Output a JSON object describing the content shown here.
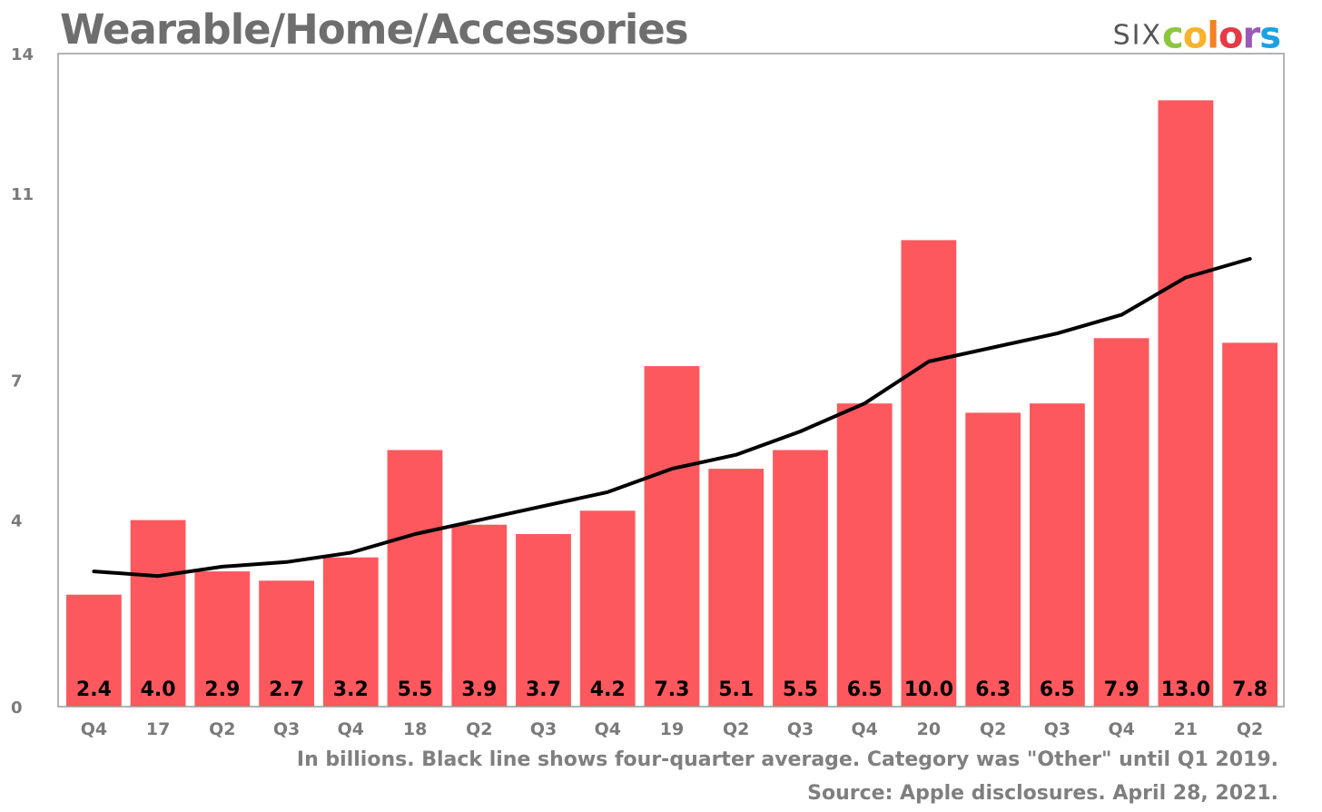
{
  "header": {
    "title": "Wearable/Home/Accessories"
  },
  "logo": {
    "six": "SIX",
    "colors_letters": [
      {
        "char": "c",
        "color": "#8cc63f"
      },
      {
        "char": "o",
        "color": "#f7b32b"
      },
      {
        "char": "l",
        "color": "#f58220"
      },
      {
        "char": "o",
        "color": "#e63946"
      },
      {
        "char": "r",
        "color": "#9b59b6"
      },
      {
        "char": "s",
        "color": "#1ba1e2"
      }
    ]
  },
  "footnotes": {
    "line1": "In billions. Black line shows four-quarter average. Category was \"Other\" until Q1 2019.",
    "line2": "Source: Apple disclosures. April 28, 2021."
  },
  "colors": {
    "bar": "#fd585e",
    "line": "#000000",
    "axis_text": "#7a7a7a",
    "frame": "#9a9a9a"
  },
  "chart_data": {
    "type": "bar",
    "title": "Wearable/Home/Accessories",
    "xlabel": "",
    "ylabel": "",
    "ylim": [
      0,
      14
    ],
    "yticks": [
      0,
      4,
      7,
      11,
      14
    ],
    "grid": false,
    "categories": [
      "Q4",
      "17",
      "Q2",
      "Q3",
      "Q4",
      "18",
      "Q2",
      "Q3",
      "Q4",
      "19",
      "Q2",
      "Q3",
      "Q4",
      "20",
      "Q2",
      "Q3",
      "Q4",
      "21",
      "Q2"
    ],
    "series": [
      {
        "type": "bar",
        "values": [
          2.4,
          4.0,
          2.9,
          2.7,
          3.2,
          5.5,
          3.9,
          3.7,
          4.2,
          7.3,
          5.1,
          5.5,
          6.5,
          10.0,
          6.3,
          6.5,
          7.9,
          13.0,
          7.8
        ],
        "labels": [
          "2.4",
          "4.0",
          "2.9",
          "2.7",
          "3.2",
          "5.5",
          "3.9",
          "3.7",
          "4.2",
          "7.3",
          "5.1",
          "5.5",
          "6.5",
          "10.0",
          "6.3",
          "6.5",
          "7.9",
          "13.0",
          "7.8"
        ]
      },
      {
        "type": "line",
        "values": [
          2.9,
          2.8,
          3.0,
          3.1,
          3.3,
          3.7,
          4.0,
          4.3,
          4.6,
          5.1,
          5.4,
          5.9,
          6.5,
          7.4,
          7.7,
          8.0,
          8.4,
          9.2,
          9.6
        ]
      }
    ]
  }
}
